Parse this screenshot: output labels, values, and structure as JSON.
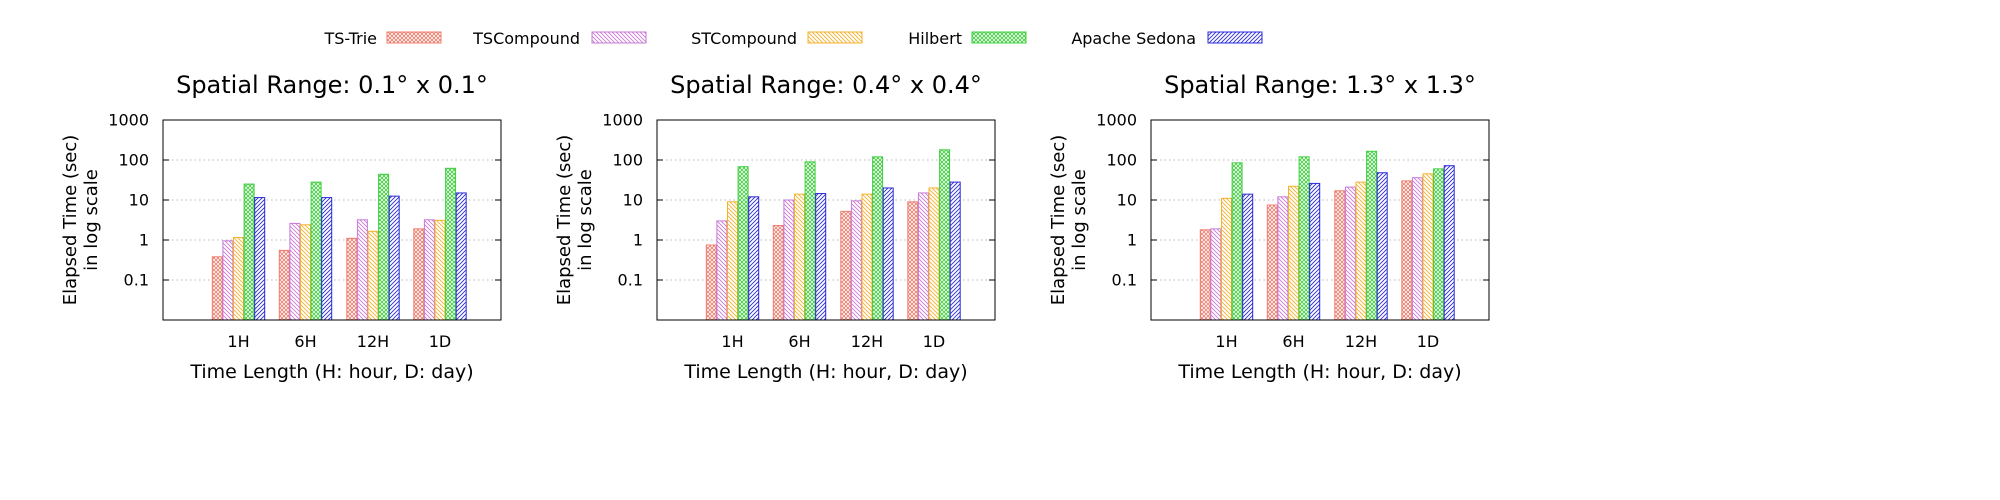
{
  "legend": {
    "entries": [
      {
        "name": "TS-Trie",
        "color": "#f07c6c",
        "pattern": "crosshatch"
      },
      {
        "name": "TSCompound",
        "color": "#c77ad6",
        "pattern": "backslash"
      },
      {
        "name": "STCompound",
        "color": "#f5b02c",
        "pattern": "backslash"
      },
      {
        "name": "Hilbert",
        "color": "#3ecf3e",
        "pattern": "crosshatch"
      },
      {
        "name": "Apache Sedona",
        "color": "#2a2ad8",
        "pattern": "slash"
      }
    ]
  },
  "chart_data": [
    {
      "type": "bar",
      "title": "Spatial Range: 0.1° x 0.1°",
      "xlabel": "Time Length (H: hour, D: day)",
      "ylabel": [
        "Elapsed Time (sec)",
        "in log scale"
      ],
      "yscale": "log",
      "ylim": [
        0.01,
        1000
      ],
      "yticks": [
        "0.1",
        "1",
        "10",
        "100",
        "1000"
      ],
      "grid": "horizontal-dotted",
      "categories": [
        "1H",
        "6H",
        "12H",
        "1D"
      ],
      "series": [
        {
          "name": "TS-Trie",
          "values": [
            0.38,
            0.55,
            1.1,
            1.9
          ]
        },
        {
          "name": "TSCompound",
          "values": [
            0.95,
            2.6,
            3.2,
            3.2
          ]
        },
        {
          "name": "STCompound",
          "values": [
            1.15,
            2.4,
            1.65,
            3.1
          ]
        },
        {
          "name": "Hilbert",
          "values": [
            25,
            28,
            44,
            62
          ]
        },
        {
          "name": "Apache Sedona",
          "values": [
            11.5,
            11.5,
            12.5,
            15
          ]
        }
      ]
    },
    {
      "type": "bar",
      "title": "Spatial Range: 0.4° x 0.4°",
      "xlabel": "Time Length (H: hour, D: day)",
      "ylabel": [
        "Elapsed Time (sec)",
        "in log scale"
      ],
      "yscale": "log",
      "ylim": [
        0.01,
        1000
      ],
      "yticks": [
        "0.1",
        "1",
        "10",
        "100",
        "1000"
      ],
      "grid": "horizontal-dotted",
      "categories": [
        "1H",
        "6H",
        "12H",
        "1D"
      ],
      "series": [
        {
          "name": "TS-Trie",
          "values": [
            0.75,
            2.3,
            5.2,
            9
          ]
        },
        {
          "name": "TSCompound",
          "values": [
            3,
            10,
            9.5,
            15
          ]
        },
        {
          "name": "STCompound",
          "values": [
            9,
            14,
            14,
            20
          ]
        },
        {
          "name": "Hilbert",
          "values": [
            68,
            90,
            120,
            180
          ]
        },
        {
          "name": "Apache Sedona",
          "values": [
            12,
            14.5,
            20,
            28
          ]
        }
      ]
    },
    {
      "type": "bar",
      "title": "Spatial Range: 1.3° x 1.3°",
      "xlabel": "Time Length (H: hour, D: day)",
      "ylabel": [
        "Elapsed Time (sec)",
        "in log scale"
      ],
      "yscale": "log",
      "ylim": [
        0.01,
        1000
      ],
      "yticks": [
        "0.1",
        "1",
        "10",
        "100",
        "1000"
      ],
      "grid": "horizontal-dotted",
      "categories": [
        "1H",
        "6H",
        "12H",
        "1D"
      ],
      "series": [
        {
          "name": "TS-Trie",
          "values": [
            1.8,
            7.5,
            17,
            30
          ]
        },
        {
          "name": "TSCompound",
          "values": [
            1.9,
            12,
            21,
            36
          ]
        },
        {
          "name": "STCompound",
          "values": [
            11,
            22,
            28,
            45
          ]
        },
        {
          "name": "Hilbert",
          "values": [
            85,
            120,
            165,
            60
          ]
        },
        {
          "name": "Apache Sedona",
          "values": [
            14,
            26,
            48,
            72
          ]
        }
      ]
    }
  ]
}
